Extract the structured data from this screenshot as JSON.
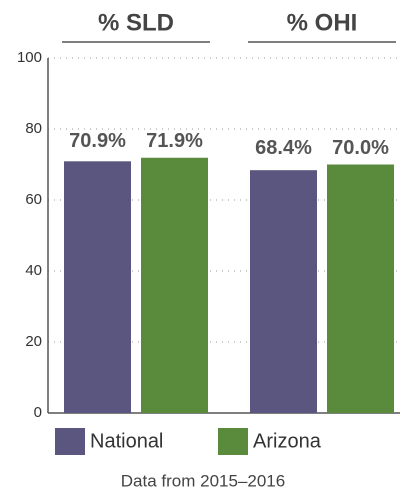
{
  "chart_data": {
    "type": "bar",
    "categories": [
      "% SLD",
      "% OHI"
    ],
    "series": [
      {
        "name": "National",
        "color": "#5b5680",
        "values": [
          70.9,
          68.4
        ],
        "value_labels": [
          "70.9%",
          "68.4%"
        ]
      },
      {
        "name": "Arizona",
        "color": "#5a8a3c",
        "values": [
          71.9,
          70.0
        ],
        "value_labels": [
          "71.9%",
          "70.0%"
        ]
      }
    ],
    "ylim": [
      0,
      100
    ],
    "yticks": [
      0,
      20,
      40,
      60,
      80,
      100
    ],
    "grid": true,
    "footnote": "Data from 2015–2016"
  }
}
